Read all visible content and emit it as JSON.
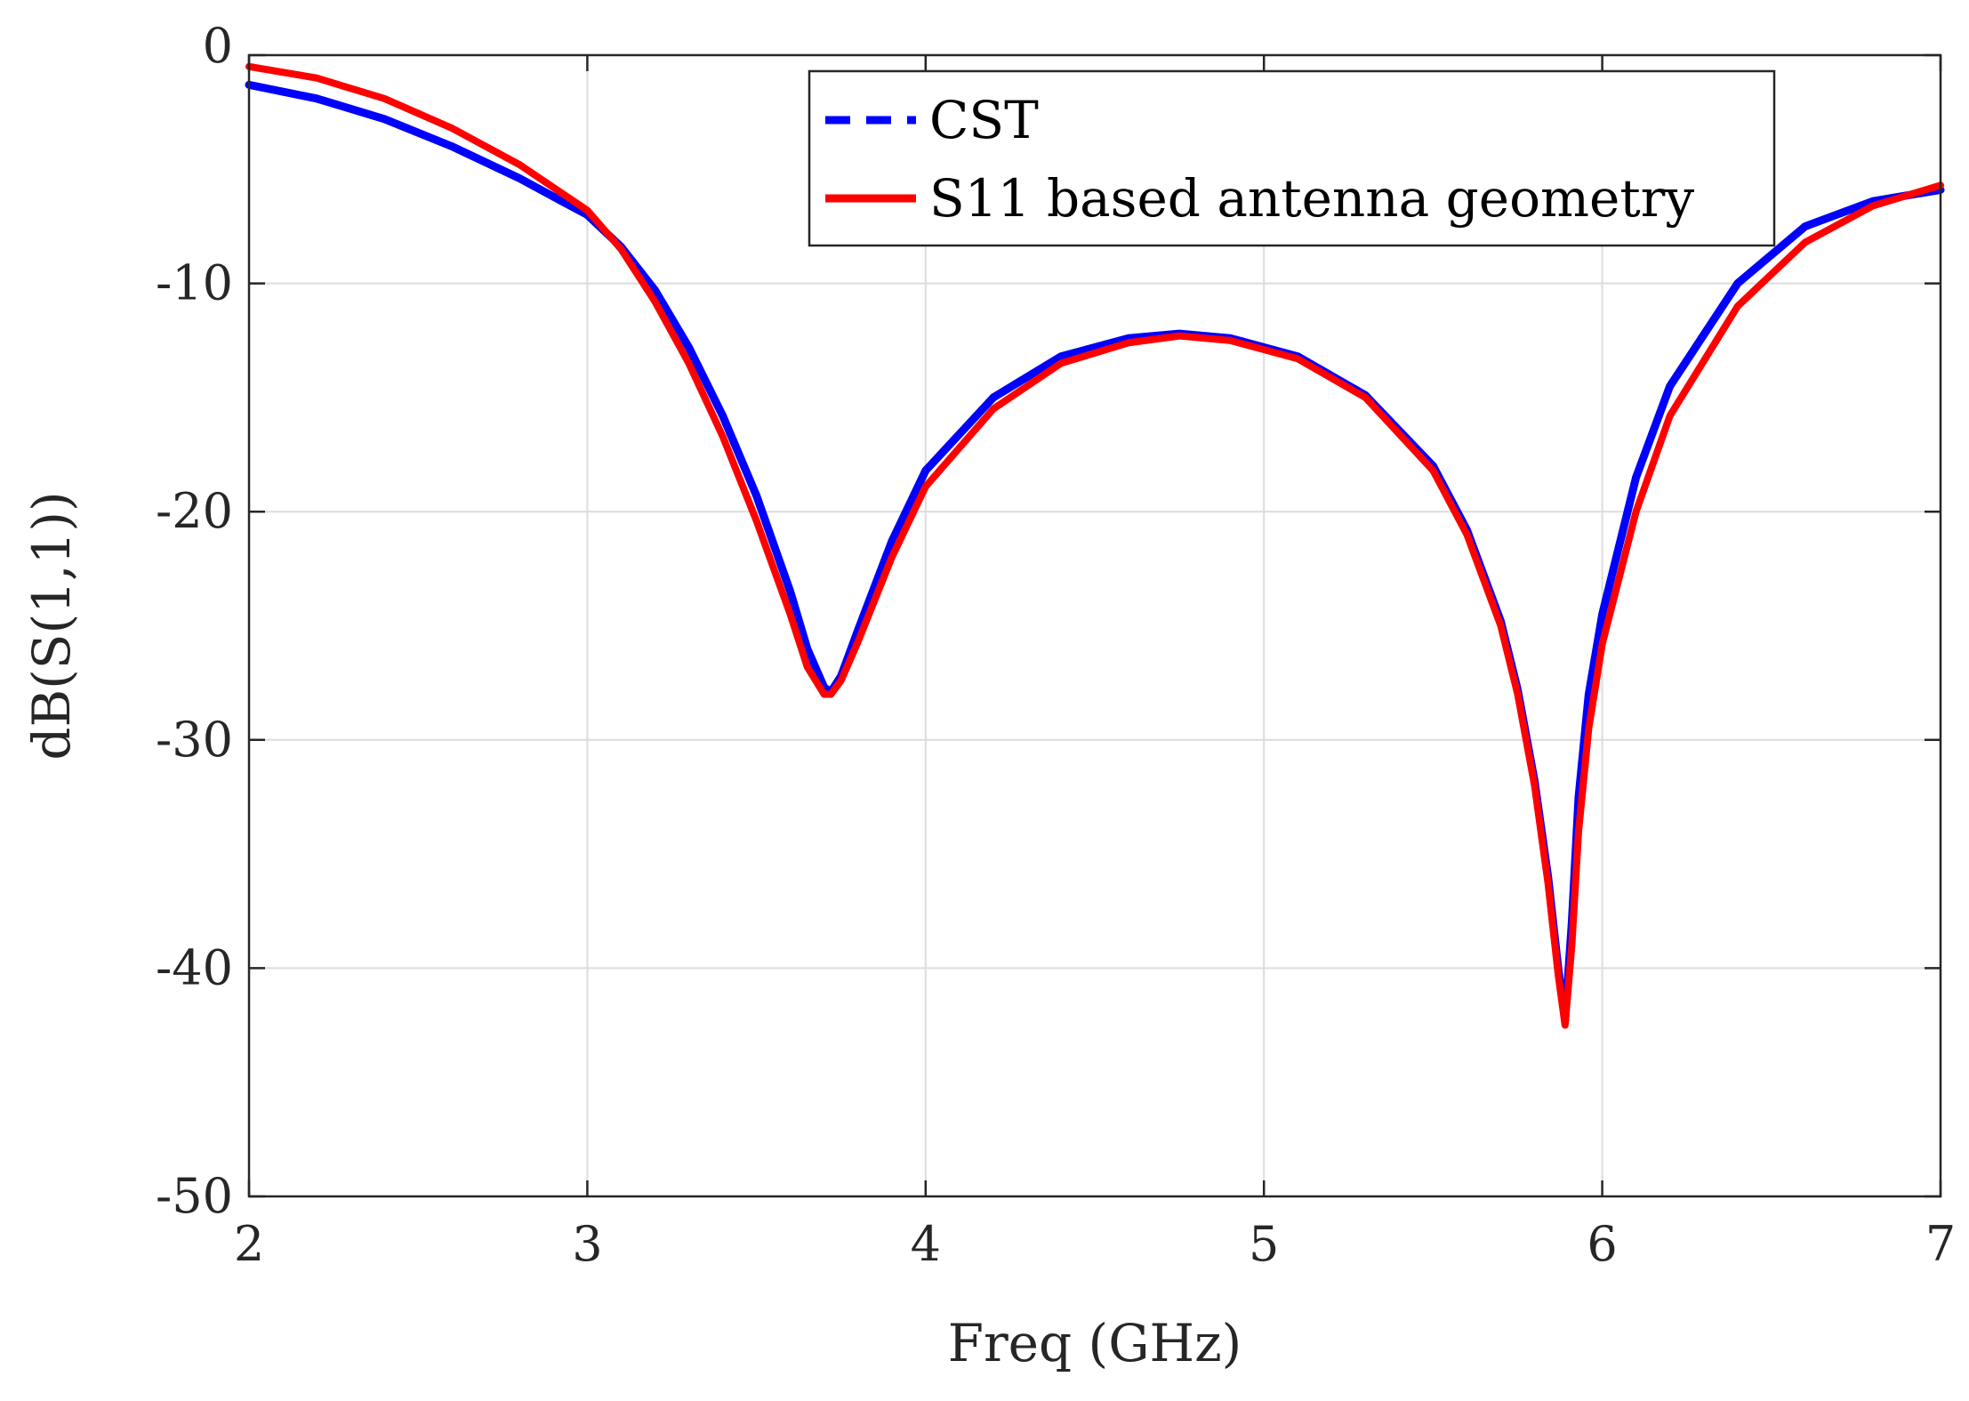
{
  "chart_data": {
    "type": "line",
    "title": "",
    "xlabel": "Freq (GHz)",
    "ylabel": "dB(S(1,1))",
    "xlim": [
      2,
      7
    ],
    "ylim": [
      -50,
      0
    ],
    "xticks": [
      2,
      3,
      4,
      5,
      6,
      7
    ],
    "yticks": [
      0,
      -10,
      -20,
      -30,
      -40,
      -50
    ],
    "xtick_labels": [
      "2",
      "3",
      "4",
      "5",
      "6",
      "7"
    ],
    "ytick_labels": [
      "0",
      "-10",
      "-20",
      "-30",
      "-40",
      "-50"
    ],
    "grid": true,
    "legend_position": "top-right",
    "series": [
      {
        "name": "CST",
        "color": "#0000ff",
        "style": "dashed",
        "x": [
          2.0,
          2.2,
          2.4,
          2.6,
          2.8,
          3.0,
          3.1,
          3.2,
          3.3,
          3.4,
          3.5,
          3.6,
          3.65,
          3.7,
          3.72,
          3.75,
          3.8,
          3.9,
          4.0,
          4.2,
          4.4,
          4.6,
          4.75,
          4.9,
          5.1,
          5.3,
          5.5,
          5.6,
          5.7,
          5.75,
          5.8,
          5.84,
          5.87,
          5.89,
          5.91,
          5.93,
          5.96,
          6.0,
          6.1,
          6.2,
          6.4,
          6.6,
          6.8,
          7.0
        ],
        "values": [
          -1.3,
          -1.9,
          -2.8,
          -4.0,
          -5.4,
          -7.0,
          -8.4,
          -10.3,
          -12.8,
          -15.8,
          -19.3,
          -23.5,
          -26.0,
          -27.7,
          -27.9,
          -27.2,
          -25.2,
          -21.3,
          -18.2,
          -15.0,
          -13.2,
          -12.4,
          -12.2,
          -12.4,
          -13.2,
          -14.9,
          -18.0,
          -20.8,
          -24.8,
          -27.8,
          -31.8,
          -36.0,
          -40.0,
          -42.3,
          -38.0,
          -32.5,
          -28.0,
          -24.5,
          -18.5,
          -14.5,
          -10.0,
          -7.5,
          -6.4,
          -5.9
        ]
      },
      {
        "name": "S11 based antenna geometry",
        "color": "#ff0000",
        "style": "solid",
        "x": [
          2.0,
          2.2,
          2.4,
          2.6,
          2.8,
          3.0,
          3.1,
          3.2,
          3.3,
          3.4,
          3.5,
          3.6,
          3.65,
          3.7,
          3.72,
          3.75,
          3.8,
          3.9,
          4.0,
          4.2,
          4.4,
          4.6,
          4.75,
          4.9,
          5.1,
          5.3,
          5.5,
          5.6,
          5.7,
          5.75,
          5.8,
          5.84,
          5.87,
          5.89,
          5.91,
          5.93,
          5.96,
          6.0,
          6.1,
          6.2,
          6.4,
          6.6,
          6.8,
          7.0
        ],
        "values": [
          -0.5,
          -1.0,
          -1.9,
          -3.2,
          -4.8,
          -6.8,
          -8.5,
          -10.8,
          -13.5,
          -16.7,
          -20.4,
          -24.5,
          -26.8,
          -28.0,
          -28.0,
          -27.4,
          -25.7,
          -22.0,
          -18.9,
          -15.5,
          -13.5,
          -12.6,
          -12.3,
          -12.5,
          -13.3,
          -15.0,
          -18.2,
          -21.0,
          -25.0,
          -28.0,
          -32.0,
          -36.3,
          -40.3,
          -42.5,
          -39.0,
          -34.0,
          -29.5,
          -25.8,
          -20.0,
          -15.8,
          -11.0,
          -8.2,
          -6.6,
          -5.7
        ]
      }
    ]
  }
}
